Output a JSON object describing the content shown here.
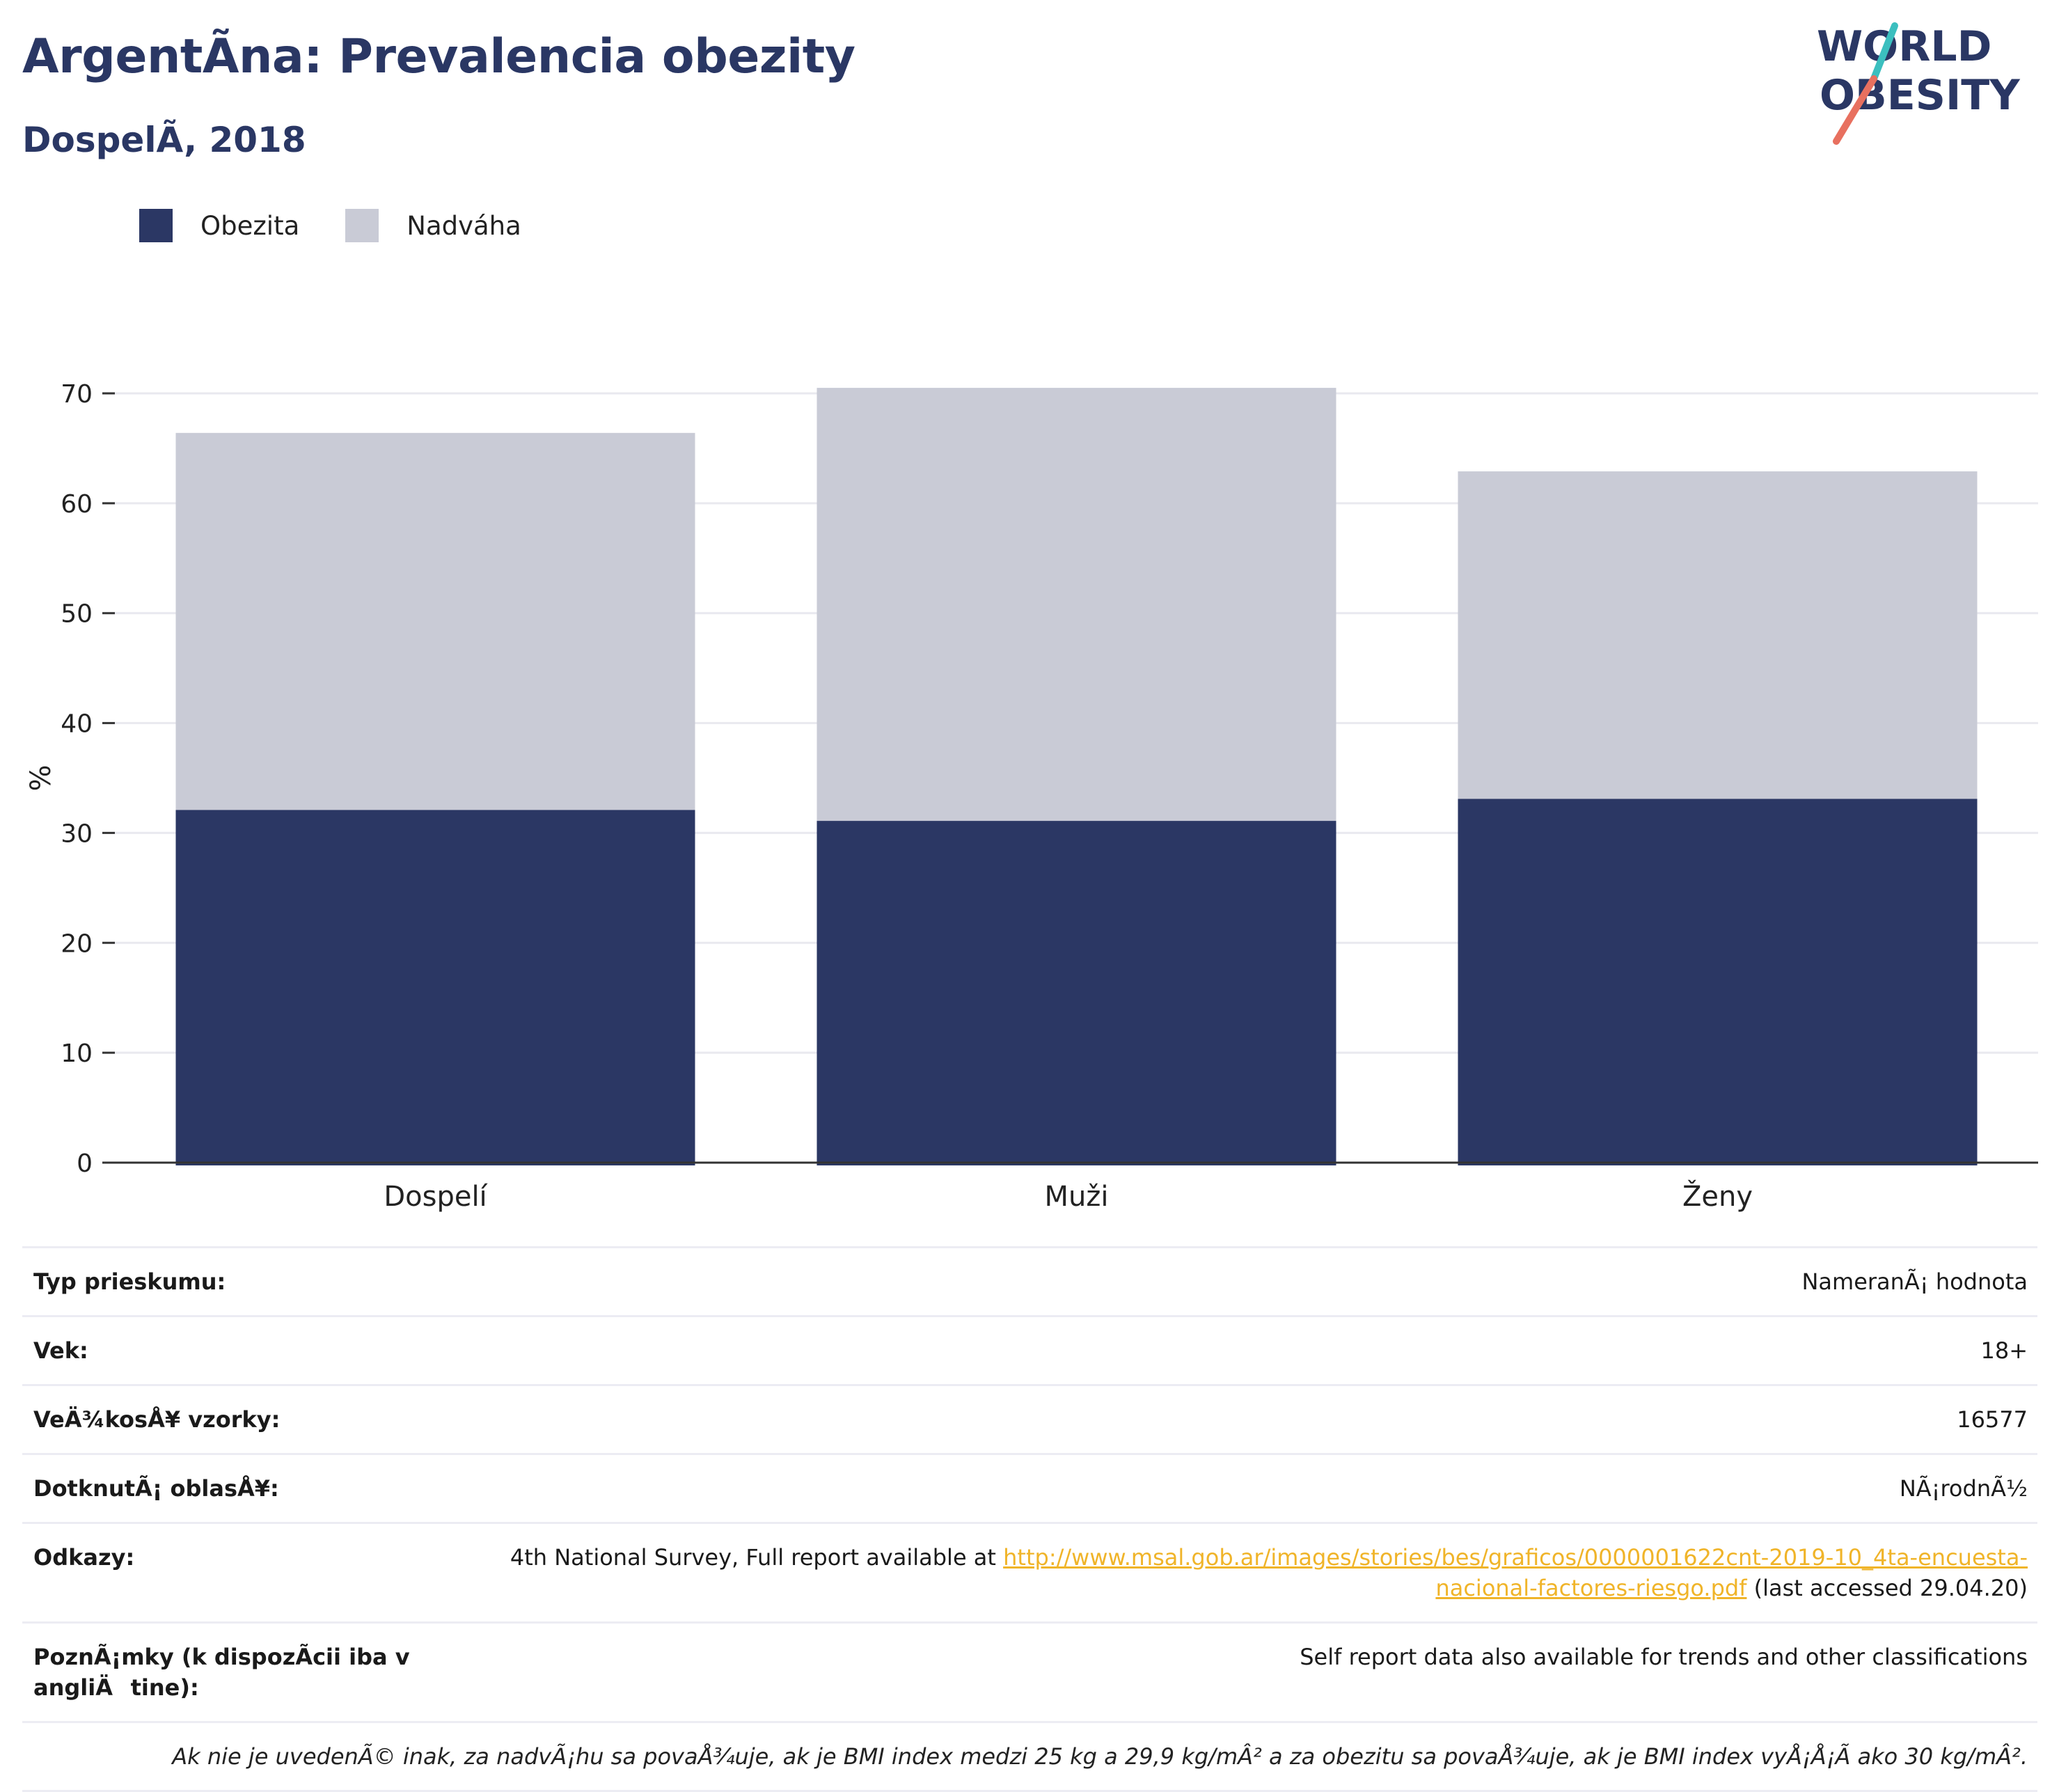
{
  "title": "ArgentÃna: Prevalencia obezity",
  "subtitle": "DospelÃ, 2018",
  "logo": {
    "line1": "WORLD",
    "line2": "OBESITY",
    "accent_teal": "#3bbfbf",
    "accent_coral": "#e8705f",
    "text_color": "#2a3764"
  },
  "colors": {
    "obesity": "#2b3764",
    "overweight": "#c9cbd6",
    "grid": "#e9e9ef",
    "axis": "#333333"
  },
  "legend": [
    {
      "label": "Obezita",
      "color": "#2b3764"
    },
    {
      "label": "Nadváha",
      "color": "#c9cbd6"
    }
  ],
  "chart_data": {
    "type": "bar",
    "stacked": true,
    "categories": [
      "Dospelí",
      "Muži",
      "Ženy"
    ],
    "series": [
      {
        "name": "Obezita",
        "values": [
          32.1,
          31.1,
          33.1
        ]
      },
      {
        "name": "Nadváha",
        "values": [
          34.3,
          39.4,
          29.8
        ]
      }
    ],
    "ylabel": "%",
    "ylim": [
      0,
      70
    ],
    "yticks": [
      0,
      10,
      20,
      30,
      40,
      50,
      60,
      70
    ],
    "grid": true,
    "legend_position": "top-left"
  },
  "info": {
    "survey_type": {
      "label": "Typ prieskumu:",
      "value": "NameranÃ¡ hodnota"
    },
    "age": {
      "label": "Vek:",
      "value": "18+"
    },
    "sample": {
      "label": "VeÄ¾kosÅ¥ vzorky:",
      "value": "16577"
    },
    "area": {
      "label": "DotknutÃ¡ oblasÅ¥:",
      "value": "NÃ¡rodnÃ½"
    },
    "refs": {
      "label": "Odkazy:",
      "prefix": "4th National Survey, Full report available at ",
      "link": "http://www.msal.gob.ar/images/stories/bes/graficos/0000001622cnt-2019-10_4ta-encuesta-nacional-factores-riesgo.pdf",
      "suffix": " (last accessed 29.04.20)"
    },
    "notes": {
      "label": "PoznÃ¡mky (k dispozÃcii iba v angliÄtine):",
      "value": "Self report data also available for trends and other classifications"
    },
    "footnote": "Ak nie je uvedenÃ© inak, za nadvÃ¡hu sa povaÅ¾uje, ak je BMI index medzi 25 kg a 29,9 kg/mÂ² a za obezitu sa povaÅ¾uje, ak je BMI index vyÅ¡Å¡Ã ako 30 kg/mÂ²."
  }
}
